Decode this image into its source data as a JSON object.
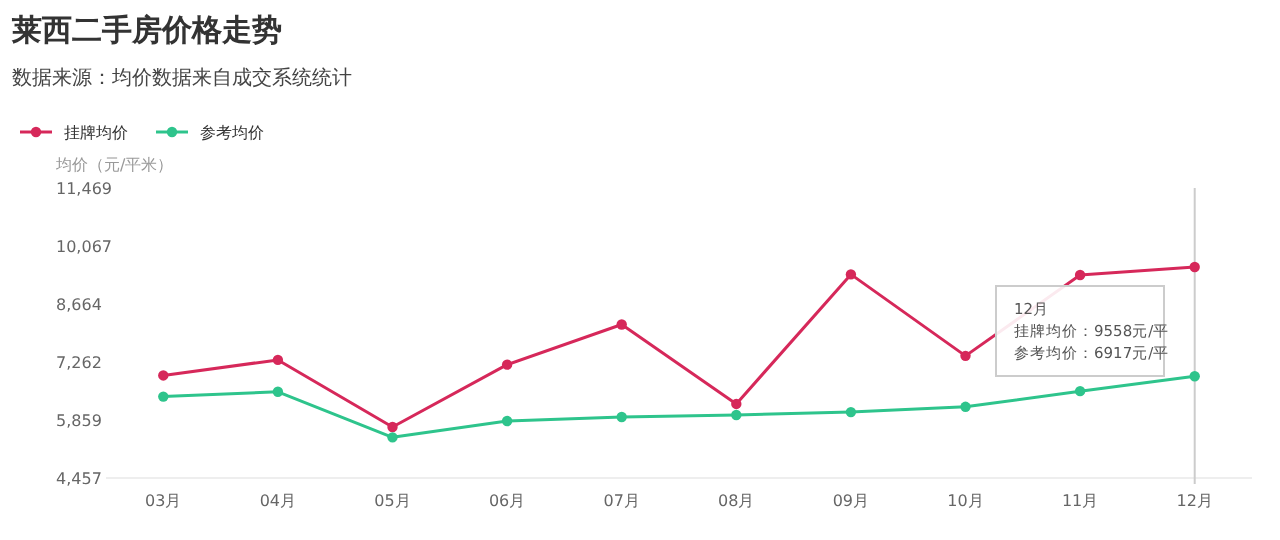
{
  "chart_data": {
    "type": "line",
    "title": "莱西二手房价格走势",
    "subtitle": "数据来源：均价数据来自成交系统统计",
    "ylabel": "均价（元/平米）",
    "categories": [
      "03月",
      "04月",
      "05月",
      "06月",
      "07月",
      "08月",
      "09月",
      "10月",
      "11月",
      "12月"
    ],
    "series": [
      {
        "name": "挂牌均价",
        "color": "#d6285a",
        "values": [
          6937,
          7312,
          5689,
          7198,
          8168,
          6248,
          9380,
          7410,
          9365,
          9558
        ]
      },
      {
        "name": "参考均价",
        "color": "#2ec48c",
        "values": [
          6425,
          6542,
          5440,
          5834,
          5932,
          5981,
          6050,
          6178,
          6557,
          6917
        ]
      }
    ],
    "ylim": [
      4457,
      11469
    ],
    "yticks": [
      {
        "value": 4457,
        "label": "4,457"
      },
      {
        "value": 5859,
        "label": "5,859"
      },
      {
        "value": 7262,
        "label": "7,262"
      },
      {
        "value": 8664,
        "label": "8,664"
      },
      {
        "value": 10067,
        "label": "10,067"
      },
      {
        "value": 11469,
        "label": "11,469"
      }
    ],
    "ref_lines": [
      {
        "axis": "x",
        "value": "12月",
        "color": "#cccccc"
      }
    ],
    "annotations": [
      "12月",
      "挂牌均价：9558元/平",
      "参考均价：6917元/平"
    ],
    "legend": "top left",
    "marker": "circle",
    "grid": false,
    "line_style": "solid"
  }
}
